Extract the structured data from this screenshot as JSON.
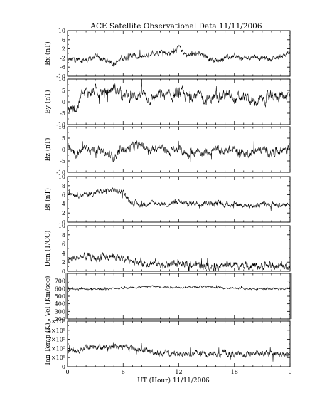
{
  "chart_data": {
    "type": "line",
    "title": "ACE Satellite Observational Data   11/11/2006",
    "xlabel": "UT (Hour)   11/11/2006",
    "x_ticks": [
      "0",
      "6",
      "12",
      "18",
      "0"
    ],
    "x_range": [
      0,
      24
    ],
    "panels": [
      {
        "ylabel": "Bx (nT)",
        "ylim": [
          -10,
          10
        ],
        "yticks": [
          "10",
          "6",
          "2",
          "-2",
          "-6",
          "-10"
        ],
        "tick_values": [
          10,
          6,
          2,
          -2,
          -6,
          -10
        ],
        "segments": [
          [
            0,
            -3
          ],
          [
            1,
            -2.5
          ],
          [
            2,
            -3
          ],
          [
            3,
            -1.5
          ],
          [
            4,
            -3
          ],
          [
            5,
            -4
          ],
          [
            6,
            -2
          ],
          [
            7,
            -1
          ],
          [
            8,
            -2
          ],
          [
            9,
            0
          ],
          [
            10,
            1
          ],
          [
            11,
            0
          ],
          [
            12,
            2.5
          ],
          [
            13,
            -1
          ],
          [
            14,
            0
          ],
          [
            15,
            -1.5
          ],
          [
            16,
            -3
          ],
          [
            17,
            -2
          ],
          [
            18,
            -1.5
          ],
          [
            19,
            -2.5
          ],
          [
            20,
            -1
          ],
          [
            21,
            -2
          ],
          [
            22,
            -2.5
          ],
          [
            23,
            -1
          ],
          [
            24,
            0
          ]
        ],
        "noise": 1.6,
        "gray_end": false
      },
      {
        "ylabel": "By (nT)",
        "ylim": [
          -10,
          10
        ],
        "yticks": [
          "10",
          "5",
          "0",
          "-5",
          "-10"
        ],
        "tick_values": [
          10,
          5,
          0,
          -5,
          -10
        ],
        "segments": [
          [
            0,
            -3
          ],
          [
            1,
            -3
          ],
          [
            1.5,
            3
          ],
          [
            2,
            4
          ],
          [
            3,
            5
          ],
          [
            4,
            4
          ],
          [
            5,
            6
          ],
          [
            6,
            3
          ],
          [
            7,
            2
          ],
          [
            8,
            4
          ],
          [
            9,
            1
          ],
          [
            10,
            3
          ],
          [
            11,
            2
          ],
          [
            12,
            4
          ],
          [
            13,
            2
          ],
          [
            14,
            3
          ],
          [
            15,
            1
          ],
          [
            16,
            2
          ],
          [
            17,
            3
          ],
          [
            18,
            1
          ],
          [
            19,
            2
          ],
          [
            20,
            0
          ],
          [
            21,
            1
          ],
          [
            22,
            2
          ],
          [
            23,
            3
          ],
          [
            24,
            3
          ]
        ],
        "noise": 3.2,
        "gray_end": false
      },
      {
        "ylabel": "Bz (nT)",
        "ylim": [
          -10,
          10
        ],
        "yticks": [
          "10",
          "5",
          "0",
          "-5",
          "-10"
        ],
        "tick_values": [
          10,
          5,
          0,
          -5,
          -10
        ],
        "segments": [
          [
            0,
            0
          ],
          [
            1,
            -2
          ],
          [
            2,
            1
          ],
          [
            3,
            0
          ],
          [
            4,
            -2
          ],
          [
            5,
            -3
          ],
          [
            6,
            0
          ],
          [
            7,
            1
          ],
          [
            8,
            2
          ],
          [
            9,
            0
          ],
          [
            10,
            1
          ],
          [
            11,
            -1
          ],
          [
            12,
            0
          ],
          [
            13,
            -2
          ],
          [
            14,
            0
          ],
          [
            15,
            -1
          ],
          [
            16,
            0
          ],
          [
            17,
            -1
          ],
          [
            18,
            0
          ],
          [
            19,
            -2
          ],
          [
            20,
            -1
          ],
          [
            21,
            0
          ],
          [
            22,
            -1
          ],
          [
            23,
            0
          ],
          [
            24,
            1
          ]
        ],
        "noise": 2.6,
        "gray_end": false
      },
      {
        "ylabel": "Bt (nT)",
        "ylim": [
          0,
          10
        ],
        "yticks": [
          "10",
          "8",
          "6",
          "4",
          "2",
          "0"
        ],
        "tick_values": [
          10,
          8,
          6,
          4,
          2,
          0
        ],
        "segments": [
          [
            0,
            6.5
          ],
          [
            1,
            6.2
          ],
          [
            2,
            6
          ],
          [
            3,
            6.5
          ],
          [
            4,
            6.8
          ],
          [
            5,
            7
          ],
          [
            6,
            6.8
          ],
          [
            6.5,
            5
          ],
          [
            7,
            4.2
          ],
          [
            8,
            3.8
          ],
          [
            9,
            4
          ],
          [
            10,
            4.2
          ],
          [
            11,
            4
          ],
          [
            12,
            4.2
          ],
          [
            13,
            4
          ],
          [
            14,
            4.3
          ],
          [
            15,
            4.2
          ],
          [
            16,
            4.1
          ],
          [
            17,
            3.9
          ],
          [
            18,
            4
          ],
          [
            19,
            3.8
          ],
          [
            20,
            3.5
          ],
          [
            21,
            3.7
          ],
          [
            22,
            3.9
          ],
          [
            23,
            3.8
          ],
          [
            24,
            3.6
          ]
        ],
        "noise": 0.8,
        "gray_end": false
      },
      {
        "ylabel": "Den (1/CC)",
        "ylim": [
          0,
          10
        ],
        "yticks": [
          "10",
          "8",
          "6",
          "4",
          "2",
          "0"
        ],
        "tick_values": [
          10,
          8,
          6,
          4,
          2,
          0
        ],
        "segments": [
          [
            0,
            2.5
          ],
          [
            1,
            3
          ],
          [
            2,
            3.2
          ],
          [
            3,
            2.8
          ],
          [
            4,
            3
          ],
          [
            5,
            3.2
          ],
          [
            6,
            2.8
          ],
          [
            7,
            2.5
          ],
          [
            8,
            2
          ],
          [
            9,
            1.8
          ],
          [
            10,
            1.6
          ],
          [
            11,
            1.5
          ],
          [
            12,
            1.6
          ],
          [
            13,
            1.4
          ],
          [
            14,
            1.5
          ],
          [
            15,
            1.3
          ],
          [
            16,
            1.2
          ],
          [
            17,
            1.4
          ],
          [
            18,
            1.3
          ],
          [
            19,
            1.5
          ],
          [
            20,
            1.2
          ],
          [
            21,
            1.1
          ],
          [
            22,
            1.2
          ],
          [
            23,
            1.0
          ],
          [
            24,
            1.0
          ]
        ],
        "noise": 1.1,
        "gray_end": false
      },
      {
        "ylabel": "Vel (Km/sec)",
        "ylim": [
          200,
          800
        ],
        "yticks": [
          "700",
          "600",
          "500",
          "400",
          "300",
          "200"
        ],
        "tick_values": [
          700,
          600,
          500,
          400,
          300,
          200
        ],
        "segments": [
          [
            0,
            600
          ],
          [
            3,
            590
          ],
          [
            6,
            610
          ],
          [
            9,
            630
          ],
          [
            12,
            620
          ],
          [
            15,
            625
          ],
          [
            18,
            605
          ],
          [
            21,
            600
          ],
          [
            24,
            595
          ]
        ],
        "noise": 18,
        "gray_end": true
      },
      {
        "ylabel": "Ion Temp (K)",
        "ylim": [
          0,
          500000
        ],
        "yticks": [
          "5×10⁵",
          "4×10⁵",
          "3×10⁵",
          "2×10⁵",
          "1×10⁵",
          "0"
        ],
        "tick_values": [
          500000,
          400000,
          300000,
          200000,
          100000,
          0
        ],
        "segments": [
          [
            0,
            180000
          ],
          [
            1,
            170000
          ],
          [
            2,
            220000
          ],
          [
            3,
            230000
          ],
          [
            4,
            210000
          ],
          [
            5,
            220000
          ],
          [
            6,
            215000
          ],
          [
            7,
            200000
          ],
          [
            8,
            190000
          ],
          [
            9,
            170000
          ],
          [
            10,
            150000
          ],
          [
            11,
            140000
          ],
          [
            12,
            150000
          ],
          [
            13,
            140000
          ],
          [
            14,
            145000
          ],
          [
            15,
            135000
          ],
          [
            16,
            140000
          ],
          [
            17,
            150000
          ],
          [
            18,
            140000
          ],
          [
            19,
            135000
          ],
          [
            20,
            145000
          ],
          [
            21,
            130000
          ],
          [
            22,
            140000
          ],
          [
            23,
            130000
          ],
          [
            24,
            120000
          ]
        ],
        "noise": 45000,
        "gray_end": false
      }
    ]
  }
}
